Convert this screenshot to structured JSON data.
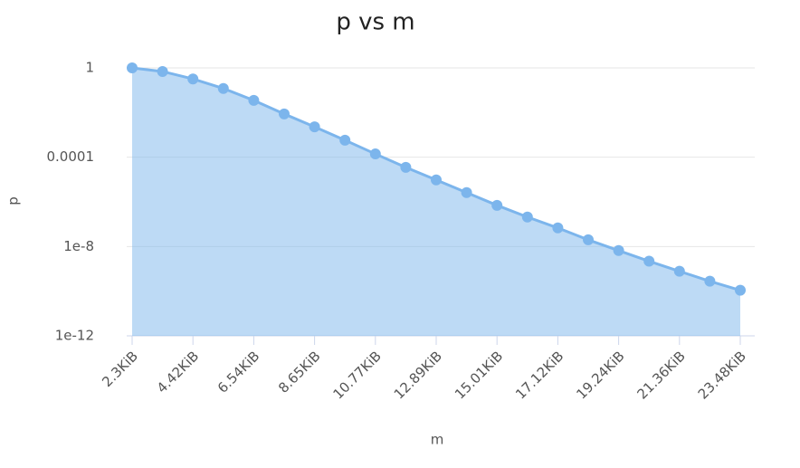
{
  "chart_data": {
    "type": "area",
    "title": "p vs m",
    "x_label": "m",
    "y_label": "p",
    "categories": [
      "2.3KiB",
      null,
      "4.42KiB",
      null,
      "6.54KiB",
      null,
      "8.65KiB",
      null,
      "10.77KiB",
      null,
      "12.89KiB",
      null,
      "15.01KiB",
      null,
      "17.12KiB",
      null,
      "19.24KiB",
      null,
      "21.36KiB",
      null,
      "23.48KiB"
    ],
    "series": [
      {
        "name": "p",
        "color": "#7cb5ec",
        "values": [
          1,
          0.69,
          0.32,
          0.12,
          0.035,
          0.0087,
          0.0023,
          0.00058,
          0.00014,
          3.5e-05,
          9.6e-06,
          2.6e-06,
          7e-07,
          2.1e-07,
          6.8e-08,
          2e-08,
          6.6e-09,
          2.2e-09,
          7.8e-10,
          2.8e-10,
          1.1e-10
        ]
      }
    ],
    "ylim": [
      1e-12,
      1
    ],
    "yticks": [
      1,
      0.0001,
      1e-08,
      1e-12
    ],
    "y_log": true,
    "grid": true
  }
}
